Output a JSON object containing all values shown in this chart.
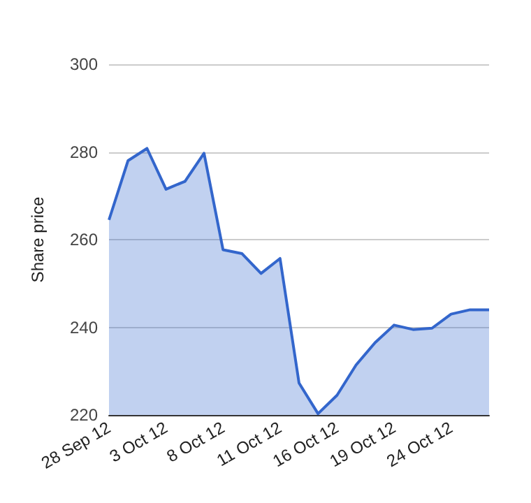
{
  "chart_data": {
    "type": "area",
    "ylabel": "Share price",
    "categories": [
      "28 Sep 12",
      null,
      null,
      "3 Oct 12",
      null,
      null,
      "8 Oct 12",
      null,
      null,
      "11 Oct 12",
      null,
      null,
      "16 Oct 12",
      null,
      null,
      "19 Oct 12",
      null,
      null,
      "24 Oct 12",
      null,
      null
    ],
    "series": [
      {
        "color": "#3366cc",
        "values": [
          264.5,
          278,
          280.8,
          271.5,
          273.3,
          279.7,
          257.7,
          256.8,
          252.3,
          255.7,
          227.3,
          220.3,
          224.5,
          231.4,
          236.5,
          240.5,
          239.5,
          239.8,
          243,
          244,
          244
        ]
      }
    ],
    "ylim": [
      220,
      300
    ],
    "yticks": [
      220,
      240,
      260,
      280,
      300
    ],
    "grid": "y",
    "marker": "none",
    "line_style": "solid"
  }
}
